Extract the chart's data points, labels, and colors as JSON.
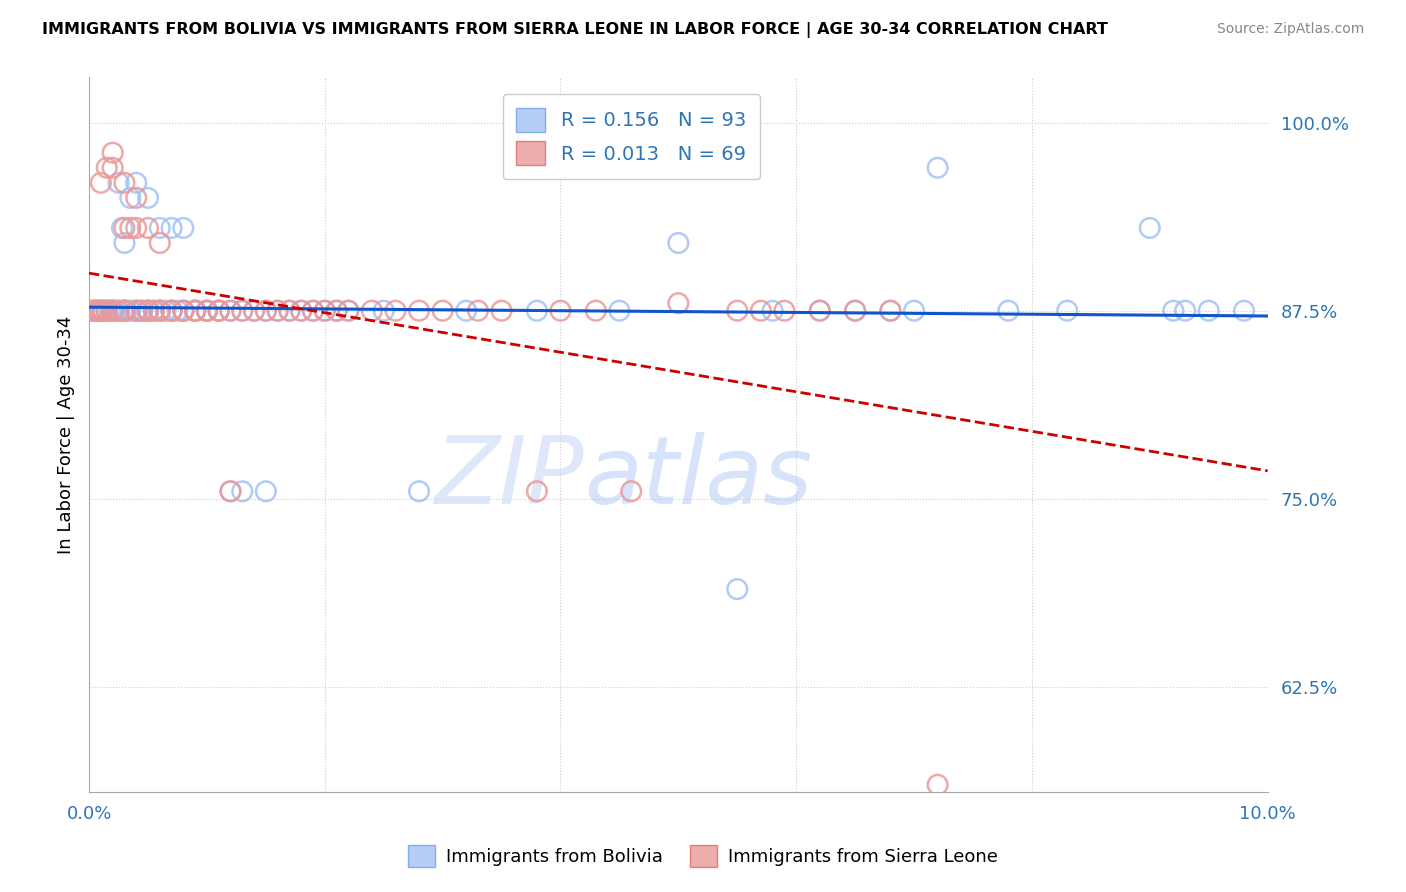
{
  "title": "IMMIGRANTS FROM BOLIVIA VS IMMIGRANTS FROM SIERRA LEONE IN LABOR FORCE | AGE 30-34 CORRELATION CHART",
  "source": "Source: ZipAtlas.com",
  "ylabel": "In Labor Force | Age 30-34",
  "xlim": [
    0.0,
    0.1
  ],
  "ylim": [
    0.555,
    1.03
  ],
  "yticks": [
    0.625,
    0.75,
    0.875,
    1.0
  ],
  "ytick_labels": [
    "62.5%",
    "75.0%",
    "87.5%",
    "100.0%"
  ],
  "xticks": [
    0.0,
    0.02,
    0.04,
    0.06,
    0.08,
    0.1
  ],
  "xtick_labels": [
    "0.0%",
    "",
    "",
    "",
    "",
    "10.0%"
  ],
  "bolivia_R": 0.156,
  "bolivia_N": 93,
  "sierraleone_R": 0.013,
  "sierraleone_N": 69,
  "bolivia_color": "#a4c2f4",
  "bolivia_edge_color": "#6d9eeb",
  "sierraleone_color": "#ea9999",
  "sierraleone_edge_color": "#e06666",
  "bolivia_line_color": "#1155cc",
  "sierraleone_line_color": "#cc0000",
  "watermark": "ZIPatlas",
  "bolivia_x": [
    0.0005,
    0.0005,
    0.0008,
    0.001,
    0.001,
    0.001,
    0.0012,
    0.0012,
    0.0015,
    0.0015,
    0.0015,
    0.0018,
    0.002,
    0.002,
    0.002,
    0.002,
    0.002,
    0.0022,
    0.0022,
    0.0025,
    0.0025,
    0.0028,
    0.003,
    0.003,
    0.003,
    0.003,
    0.003,
    0.0032,
    0.0035,
    0.0035,
    0.004,
    0.004,
    0.004,
    0.004,
    0.0042,
    0.0045,
    0.005,
    0.005,
    0.005,
    0.005,
    0.0055,
    0.006,
    0.006,
    0.006,
    0.0065,
    0.007,
    0.007,
    0.007,
    0.0075,
    0.008,
    0.008,
    0.008,
    0.009,
    0.009,
    0.009,
    0.01,
    0.01,
    0.011,
    0.011,
    0.012,
    0.012,
    0.013,
    0.013,
    0.014,
    0.015,
    0.015,
    0.016,
    0.017,
    0.018,
    0.019,
    0.02,
    0.021,
    0.022,
    0.025,
    0.028,
    0.032,
    0.038,
    0.045,
    0.05,
    0.058,
    0.062,
    0.068,
    0.072,
    0.078,
    0.083,
    0.09,
    0.092,
    0.093,
    0.095,
    0.098,
    0.055,
    0.065,
    0.07
  ],
  "bolivia_y": [
    0.875,
    0.875,
    0.875,
    0.875,
    0.875,
    0.875,
    0.875,
    0.875,
    0.875,
    0.875,
    0.875,
    0.875,
    0.875,
    0.875,
    0.875,
    0.875,
    0.875,
    0.875,
    0.875,
    0.96,
    0.875,
    0.93,
    0.875,
    0.875,
    0.875,
    0.92,
    0.875,
    0.875,
    0.95,
    0.875,
    0.875,
    0.96,
    0.875,
    0.875,
    0.875,
    0.875,
    0.95,
    0.875,
    0.875,
    0.875,
    0.875,
    0.875,
    0.93,
    0.875,
    0.875,
    0.875,
    0.93,
    0.875,
    0.875,
    0.875,
    0.93,
    0.875,
    0.875,
    0.875,
    0.875,
    0.875,
    0.875,
    0.875,
    0.875,
    0.875,
    0.755,
    0.875,
    0.755,
    0.875,
    0.875,
    0.755,
    0.875,
    0.875,
    0.875,
    0.875,
    0.875,
    0.875,
    0.875,
    0.875,
    0.755,
    0.875,
    0.875,
    0.875,
    0.92,
    0.875,
    0.875,
    0.875,
    0.97,
    0.875,
    0.875,
    0.93,
    0.875,
    0.875,
    0.875,
    0.875,
    0.69,
    0.875,
    0.875
  ],
  "sierraleone_x": [
    0.0002,
    0.0004,
    0.0006,
    0.0008,
    0.001,
    0.001,
    0.0012,
    0.0015,
    0.0015,
    0.002,
    0.002,
    0.002,
    0.0025,
    0.003,
    0.003,
    0.003,
    0.003,
    0.0035,
    0.004,
    0.004,
    0.004,
    0.0045,
    0.005,
    0.005,
    0.005,
    0.0055,
    0.006,
    0.006,
    0.006,
    0.007,
    0.007,
    0.008,
    0.008,
    0.009,
    0.009,
    0.01,
    0.01,
    0.011,
    0.011,
    0.012,
    0.012,
    0.013,
    0.014,
    0.015,
    0.016,
    0.017,
    0.018,
    0.019,
    0.02,
    0.021,
    0.022,
    0.024,
    0.026,
    0.028,
    0.03,
    0.033,
    0.035,
    0.038,
    0.04,
    0.043,
    0.046,
    0.05,
    0.055,
    0.057,
    0.059,
    0.062,
    0.065,
    0.068,
    0.072
  ],
  "sierraleone_y": [
    0.875,
    0.875,
    0.875,
    0.875,
    0.96,
    0.875,
    0.875,
    0.97,
    0.875,
    0.98,
    0.97,
    0.875,
    0.875,
    0.875,
    0.96,
    0.93,
    0.875,
    0.93,
    0.95,
    0.93,
    0.875,
    0.875,
    0.93,
    0.875,
    0.875,
    0.875,
    0.92,
    0.875,
    0.875,
    0.875,
    0.875,
    0.875,
    0.875,
    0.875,
    0.875,
    0.875,
    0.875,
    0.875,
    0.875,
    0.875,
    0.755,
    0.875,
    0.875,
    0.875,
    0.875,
    0.875,
    0.875,
    0.875,
    0.875,
    0.875,
    0.875,
    0.875,
    0.875,
    0.875,
    0.875,
    0.875,
    0.875,
    0.755,
    0.875,
    0.875,
    0.755,
    0.88,
    0.875,
    0.875,
    0.875,
    0.875,
    0.875,
    0.875,
    0.56
  ]
}
